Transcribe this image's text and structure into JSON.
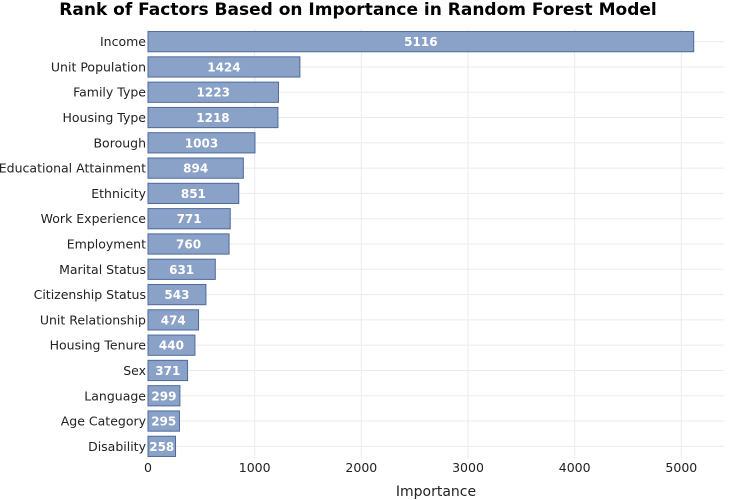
{
  "chart_data": {
    "type": "bar",
    "orientation": "horizontal",
    "title": "Rank of Factors Based on Importance in Random Forest Model",
    "xlabel": "Importance",
    "ylabel": "",
    "xlim": [
      0,
      5400
    ],
    "xticks": [
      0,
      1000,
      2000,
      3000,
      4000,
      5000
    ],
    "grid": true,
    "categories": [
      "Income",
      "Unit Population",
      "Family Type",
      "Housing Type",
      "Borough",
      "Educational Attainment",
      "Ethnicity",
      "Work Experience",
      "Employment",
      "Marital Status",
      "Citizenship Status",
      "Unit Relationship",
      "Housing Tenure",
      "Sex",
      "Language",
      "Age Category",
      "Disability"
    ],
    "values": [
      5116,
      1424,
      1223,
      1218,
      1003,
      894,
      851,
      771,
      760,
      631,
      543,
      474,
      440,
      371,
      299,
      295,
      258
    ],
    "colors": {
      "bar_fill": "#8aa2c8",
      "bar_stroke": "#4e6a9a",
      "label_text": "#ffffff"
    }
  }
}
